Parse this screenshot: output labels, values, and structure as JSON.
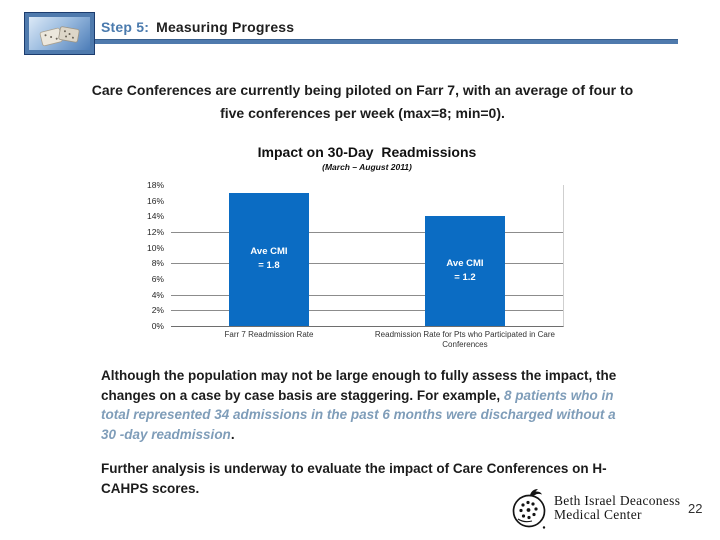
{
  "header": {
    "step_label": "Step 5:",
    "title": "Measuring Progress"
  },
  "intro": {
    "text": "Care Conferences are currently being piloted on Farr 7, with an average of four to five conferences per week (max=8; min=0)."
  },
  "chart_data": {
    "type": "bar",
    "title": "Impact on 30-Day  Readmissions",
    "subtitle": "(March – August 2011)",
    "categories": [
      "Farr 7 Readmission Rate",
      "Readmission Rate for Pts who Participated in Care Conferences"
    ],
    "values": [
      17,
      14
    ],
    "bar_labels": [
      "Ave CMI\n= 1.8",
      "Ave CMI\n= 1.2"
    ],
    "ylim": [
      0,
      18
    ],
    "ytick_step": 2,
    "ytick_suffix": "%",
    "gridlines_at": [
      12,
      8,
      4,
      2
    ],
    "bar_color": "#0b6cc3",
    "grid": true,
    "legend": false,
    "xlabel": "",
    "ylabel": ""
  },
  "body": {
    "para1_plain": "Although the population may not be large enough to fully assess the impact, the changes on a case by case basis are staggering. For example, ",
    "para1_highlight": "8 patients who in total represented 34 admissions in the past 6 months were discharged without a 30 -day readmission",
    "para1_period": ".",
    "para2": "Further analysis is underway to evaluate the impact of Care Conferences on H-CAHPS scores."
  },
  "footer": {
    "org_line1": "Beth Israel Deaconess",
    "org_line2": "Medical Center",
    "page_number": "22"
  },
  "colors": {
    "accent_blue": "#4f7aad",
    "title_blue": "#4a7aad",
    "bar_blue": "#0b6cc3",
    "highlight_text": "#7f9db9",
    "text_dark": "#1c1c1c",
    "grid_gray": "#8c8c8c"
  }
}
